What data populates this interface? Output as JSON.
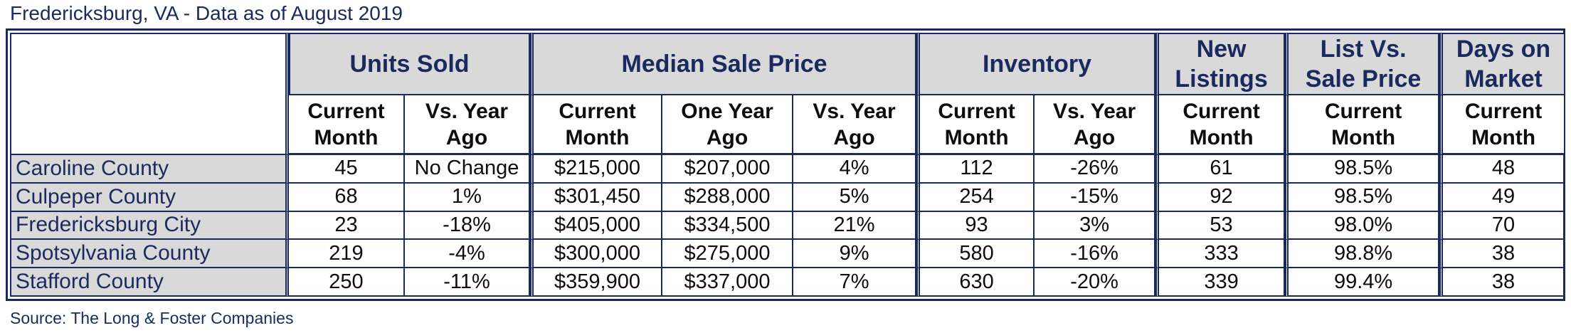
{
  "title": "Fredericksburg, VA - Data as of August 2019",
  "source": "Source: The Long & Foster Companies",
  "groups": {
    "units_sold": "Units Sold",
    "median_sale_price": "Median Sale Price",
    "inventory": "Inventory",
    "new_listings": [
      "New",
      "Listings"
    ],
    "list_vs_sale": [
      "List Vs.",
      "Sale Price"
    ],
    "days_on_market": [
      "Days on",
      "Market"
    ]
  },
  "subheaders": {
    "current_month": [
      "Current",
      "Month"
    ],
    "vs_year_ago": [
      "Vs. Year",
      "Ago"
    ],
    "one_year_ago": [
      "One Year",
      "Ago"
    ]
  },
  "rows": [
    {
      "name": "Caroline County",
      "units_current": "45",
      "units_vs": "No Change",
      "price_current": "$215,000",
      "price_year_ago": "$207,000",
      "price_vs": "4%",
      "inv_current": "112",
      "inv_vs": "-26%",
      "new_listings": "61",
      "list_vs_sale": "98.5%",
      "dom": "48"
    },
    {
      "name": "Culpeper County",
      "units_current": "68",
      "units_vs": "1%",
      "price_current": "$301,450",
      "price_year_ago": "$288,000",
      "price_vs": "5%",
      "inv_current": "254",
      "inv_vs": "-15%",
      "new_listings": "92",
      "list_vs_sale": "98.5%",
      "dom": "49"
    },
    {
      "name": "Fredericksburg City",
      "units_current": "23",
      "units_vs": "-18%",
      "price_current": "$405,000",
      "price_year_ago": "$334,500",
      "price_vs": "21%",
      "inv_current": "93",
      "inv_vs": "3%",
      "new_listings": "53",
      "list_vs_sale": "98.0%",
      "dom": "70"
    },
    {
      "name": "Spotsylvania County",
      "units_current": "219",
      "units_vs": "-4%",
      "price_current": "$300,000",
      "price_year_ago": "$275,000",
      "price_vs": "9%",
      "inv_current": "580",
      "inv_vs": "-16%",
      "new_listings": "333",
      "list_vs_sale": "98.8%",
      "dom": "38"
    },
    {
      "name": "Stafford County",
      "units_current": "250",
      "units_vs": "-11%",
      "price_current": "$359,900",
      "price_year_ago": "$337,000",
      "price_vs": "7%",
      "inv_current": "630",
      "inv_vs": "-20%",
      "new_listings": "339",
      "list_vs_sale": "99.4%",
      "dom": "38"
    }
  ]
}
